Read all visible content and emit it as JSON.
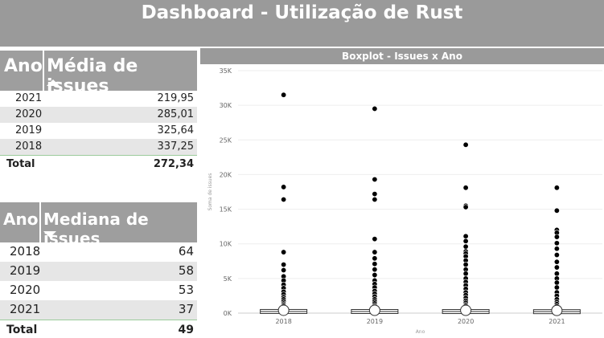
{
  "header": {
    "title": "Dashboard - Utilização de Rust"
  },
  "table_mean": {
    "col_year": "Ano",
    "col_value": "Média de issues",
    "rows": [
      {
        "year": "2021",
        "value": "219,95"
      },
      {
        "year": "2020",
        "value": "285,01"
      },
      {
        "year": "2019",
        "value": "325,64"
      },
      {
        "year": "2018",
        "value": "337,25"
      }
    ],
    "total_label": "Total",
    "total_value": "272,34"
  },
  "table_median": {
    "col_year": "Ano",
    "col_value": "Mediana de issues",
    "rows": [
      {
        "year": "2018",
        "value": "64"
      },
      {
        "year": "2019",
        "value": "58"
      },
      {
        "year": "2020",
        "value": "53"
      },
      {
        "year": "2021",
        "value": "37"
      }
    ],
    "total_label": "Total",
    "total_value": "49"
  },
  "chart_data": {
    "type": "scatter",
    "title": "Boxplot - Issues x Ano",
    "xlabel": "Ano",
    "ylabel": "Soma de issues",
    "categories": [
      "2018",
      "2019",
      "2020",
      "2021"
    ],
    "ylim": [
      0,
      35000
    ],
    "yticks": [
      "0K",
      "5K",
      "10K",
      "15K",
      "20K",
      "25K",
      "30K",
      "35K"
    ],
    "grid": true,
    "box_medians": [
      64,
      58,
      53,
      37
    ],
    "outliers": [
      [
        31500,
        18200,
        16400,
        8800,
        7000,
        6200,
        5300,
        4700,
        4100,
        3600,
        3100,
        2700,
        2300,
        2000,
        1700,
        1400,
        1200,
        1000,
        800
      ],
      [
        29500,
        19300,
        17200,
        16400,
        10700,
        8800,
        7900,
        7100,
        6300,
        5500,
        4700,
        4200,
        3700,
        3200,
        2800,
        2400,
        2000,
        1700,
        1400,
        1100,
        900
      ],
      [
        24300,
        18100,
        15500,
        15300,
        11100,
        10400,
        9600,
        8900,
        8600,
        8200,
        7600,
        7000,
        6300,
        5700,
        5000,
        4500,
        4000,
        3500,
        3000,
        2600,
        2200,
        1800,
        1500,
        1200,
        1000
      ],
      [
        18100,
        14800,
        12000,
        11600,
        11000,
        10100,
        9300,
        8400,
        7400,
        6600,
        5700,
        5000,
        4400,
        3700,
        3000,
        2500,
        2000,
        1600,
        1300,
        1000
      ]
    ]
  }
}
